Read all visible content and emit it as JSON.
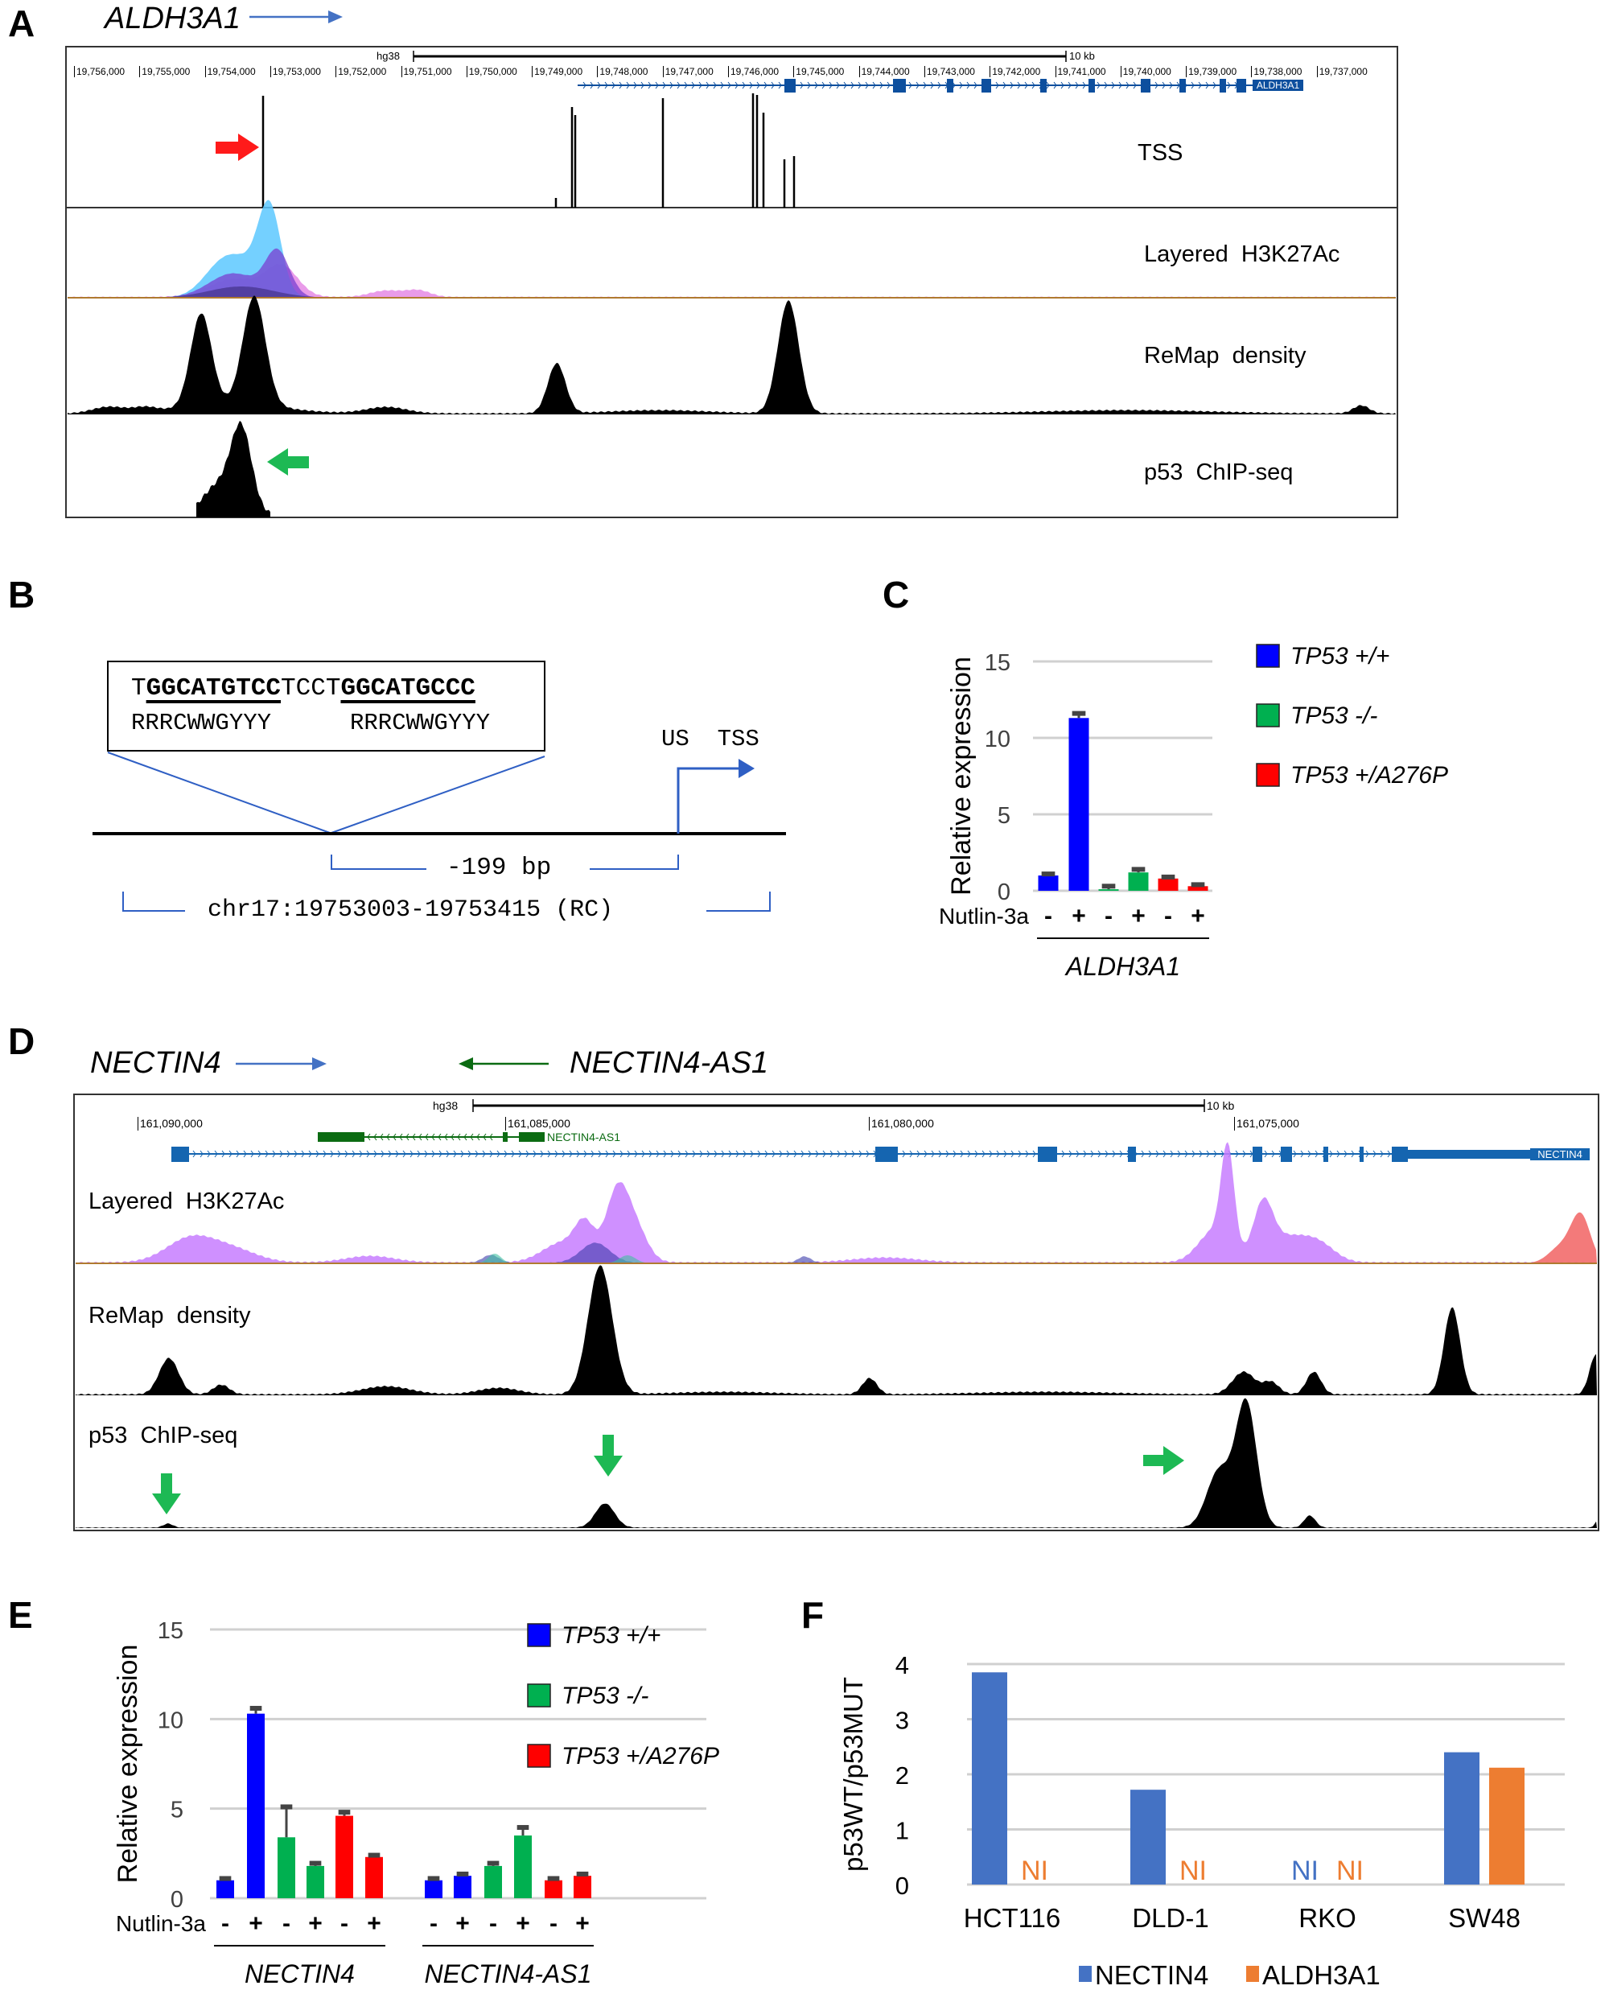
{
  "panels": {
    "a": "A",
    "b": "B",
    "c": "C",
    "d": "D",
    "e": "E",
    "f": "F"
  },
  "panel_a": {
    "gene": "ALDH3A1",
    "assembly": "hg38",
    "scale": "10 kb",
    "ruler_ticks": [
      "19,756,000",
      "19,755,000",
      "19,754,000",
      "19,753,000",
      "19,752,000",
      "19,751,000",
      "19,750,000",
      "19,749,000",
      "19,748,000",
      "19,747,000",
      "19,746,000",
      "19,745,000",
      "19,744,000",
      "19,743,000",
      "19,742,000",
      "19,741,000",
      "19,740,000",
      "19,739,000",
      "19,738,000",
      "19,737,000"
    ],
    "gene_label": "ALDH3A1",
    "tracks": [
      "TSS",
      "Layered  H3K27Ac",
      "ReMap  density",
      "p53  ChIP-seq"
    ],
    "colors": {
      "gene": "#0d4f9e",
      "arrow_red": "#ff1a1a",
      "arrow_green": "#1db954",
      "h3k27ac_blue": "#5cc8ff",
      "h3k27ac_purple": "#8a4dd6"
    }
  },
  "panel_b": {
    "seq_parts": [
      {
        "text": "T",
        "bold": false
      },
      {
        "text": "GGCATGTCC",
        "bold": true
      },
      {
        "text": "TCCT",
        "bold": false
      },
      {
        "text": "GGCATGCCC",
        "bold": true
      }
    ],
    "consensus_1": "RRRCWWGYYY",
    "consensus_2": "RRRCWWGYYY",
    "tss_label": "US  TSS",
    "distance": "-199 bp",
    "region": "chr17:19753003-19753415 (RC)"
  },
  "panel_d": {
    "gene_left": "NECTIN4",
    "gene_right": "NECTIN4-AS1",
    "assembly": "hg38",
    "scale": "10 kb",
    "ruler_ticks": [
      "161,090,000",
      "161,085,000",
      "161,080,000",
      "161,075,000"
    ],
    "as1_label": "NECTIN4-AS1",
    "gene_label": "NECTIN4",
    "tracks": [
      "Layered  H3K27Ac",
      "ReMap  density",
      "p53  ChIP-seq"
    ],
    "colors": {
      "gene": "#1565b0",
      "as1": "#0b6b12",
      "h3k27ac_purple": "#c77dff",
      "h3k27ac_red": "#f26b6b"
    }
  },
  "chart_data": [
    {
      "id": "C",
      "type": "bar",
      "ylabel": "Relative expression",
      "ylim": [
        0,
        15
      ],
      "yticks": [
        "0",
        "5",
        "10",
        "15"
      ],
      "grid": true,
      "legend_position": "right",
      "legend": [
        "TP53 +/+",
        "TP53 -/-",
        "TP53 +/A276P"
      ],
      "colors": [
        "#0000ff",
        "#00b050",
        "#ff0000"
      ],
      "treatment_label": "Nutlin-3a",
      "treatment": [
        "-",
        "+",
        "-",
        "+",
        "-",
        "+"
      ],
      "groups": [
        {
          "name": "ALDH3A1",
          "values": [
            1.0,
            11.3,
            0.1,
            1.2,
            0.8,
            0.3
          ],
          "errors": [
            0.1,
            0.3,
            0.2,
            0.2,
            0.1,
            0.1
          ],
          "series": [
            0,
            0,
            1,
            1,
            2,
            2
          ]
        }
      ]
    },
    {
      "id": "E",
      "type": "bar",
      "ylabel": "Relative expression",
      "ylim": [
        0,
        15
      ],
      "yticks": [
        "0",
        "5",
        "10",
        "15"
      ],
      "grid": true,
      "legend_position": "top-right",
      "legend": [
        "TP53 +/+",
        "TP53 -/-",
        "TP53 +/A276P"
      ],
      "colors": [
        "#0000ff",
        "#00b050",
        "#ff0000"
      ],
      "treatment_label": "Nutlin-3a",
      "treatment": [
        "-",
        "+",
        "-",
        "+",
        "-",
        "+",
        "-",
        "+",
        "-",
        "+",
        "-",
        "+"
      ],
      "groups": [
        {
          "name": "NECTIN4",
          "values": [
            1.0,
            10.3,
            3.4,
            1.8,
            4.6,
            2.3
          ],
          "errors": [
            0.1,
            0.3,
            1.7,
            0.15,
            0.2,
            0.1
          ],
          "series": [
            0,
            0,
            1,
            1,
            2,
            2
          ]
        },
        {
          "name": "NECTIN4-AS1",
          "values": [
            1.0,
            1.25,
            1.8,
            3.5,
            1.0,
            1.25
          ],
          "errors": [
            0.1,
            0.1,
            0.15,
            0.45,
            0.1,
            0.1
          ],
          "series": [
            0,
            0,
            1,
            1,
            2,
            2
          ]
        }
      ]
    },
    {
      "id": "F",
      "type": "bar",
      "ylabel": "p53WT/p53MUT",
      "ylim": [
        0,
        4
      ],
      "yticks": [
        "0",
        "1",
        "2",
        "3",
        "4"
      ],
      "grid": true,
      "legend_position": "bottom",
      "categories": [
        "HCT116",
        "DLD-1",
        "RKO",
        "SW48"
      ],
      "series": [
        {
          "name": "NECTIN4",
          "color": "#4472c4",
          "values": [
            3.85,
            1.72,
            null,
            2.4
          ]
        },
        {
          "name": "ALDH3A1",
          "color": "#ed7d31",
          "values": [
            null,
            null,
            null,
            2.12
          ]
        }
      ],
      "missing_label": "NI"
    }
  ]
}
